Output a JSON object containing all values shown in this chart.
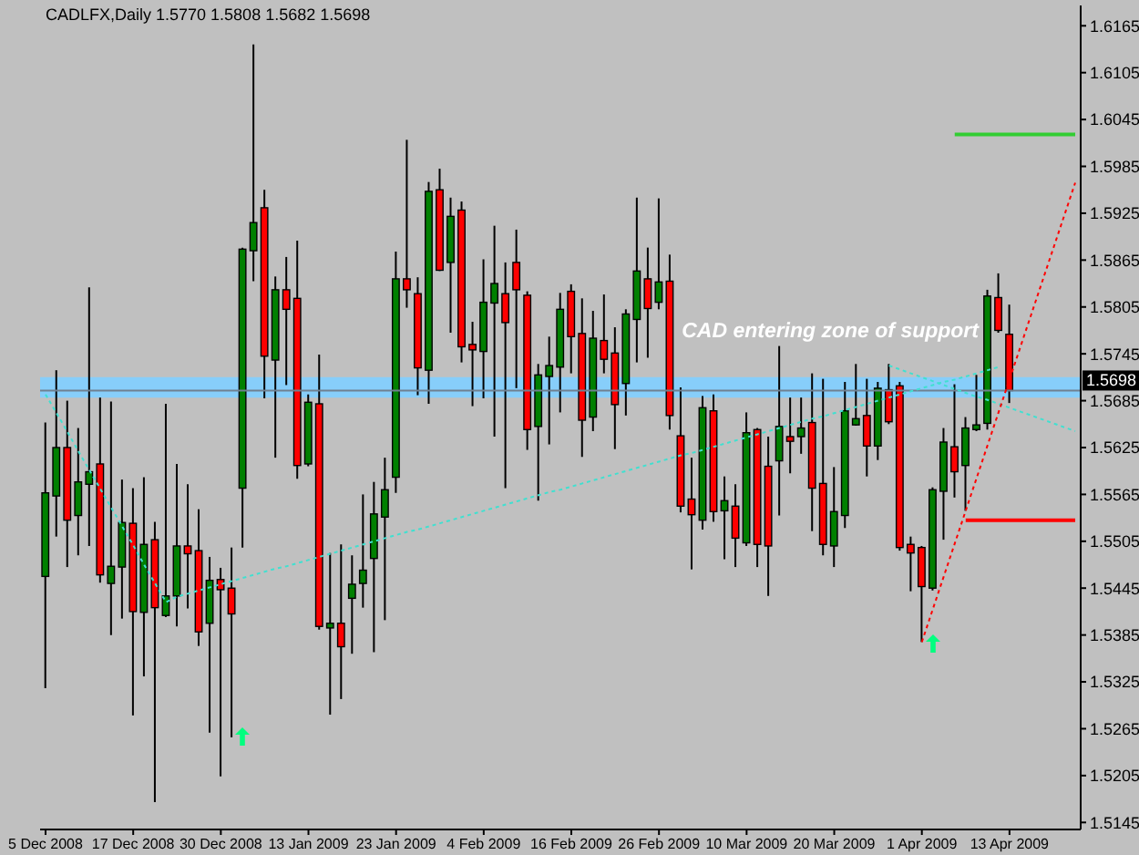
{
  "chart_data": {
    "type": "candlestick",
    "title": "CADLFX,Daily 1.5770 1.5808 1.5682 1.5698",
    "categories": [
      "5 Dec 2008",
      null,
      null,
      null,
      null,
      null,
      null,
      null,
      "17 Dec 2008",
      null,
      null,
      null,
      null,
      null,
      null,
      null,
      "30 Dec 2008",
      null,
      null,
      null,
      null,
      null,
      null,
      null,
      "13 Jan 2009",
      null,
      null,
      null,
      null,
      null,
      null,
      null,
      "23 Jan 2009",
      null,
      null,
      null,
      null,
      null,
      null,
      null,
      "4 Feb 2009",
      null,
      null,
      null,
      null,
      null,
      null,
      null,
      "16 Feb 2009",
      null,
      null,
      null,
      null,
      null,
      null,
      null,
      "26 Feb 2009",
      null,
      null,
      null,
      null,
      null,
      null,
      null,
      "10 Mar 2009",
      null,
      null,
      null,
      null,
      null,
      null,
      null,
      "20 Mar 2009",
      null,
      null,
      null,
      null,
      null,
      null,
      null,
      "1 Apr 2009",
      null,
      null,
      null,
      null,
      null,
      null,
      null,
      "13 Apr 2009",
      null,
      null,
      null,
      null,
      null,
      null
    ],
    "ohlc": [
      [
        1.546,
        1.5657,
        1.5317,
        1.5567
      ],
      [
        1.5563,
        1.5724,
        1.5511,
        1.5625
      ],
      [
        1.5625,
        1.5685,
        1.5472,
        1.5532
      ],
      [
        1.5538,
        1.565,
        1.5487,
        1.5581
      ],
      [
        1.5578,
        1.583,
        1.5499,
        1.5594
      ],
      [
        1.5604,
        1.5689,
        1.5452,
        1.5462
      ],
      [
        1.5451,
        1.5684,
        1.5385,
        1.5473
      ],
      [
        1.5472,
        1.5584,
        1.5406,
        1.5529
      ],
      [
        1.5528,
        1.5573,
        1.5282,
        1.5415
      ],
      [
        1.5414,
        1.5587,
        1.5332,
        1.5501
      ],
      [
        1.5507,
        1.553,
        1.5171,
        1.542
      ],
      [
        1.541,
        1.5681,
        1.5408,
        1.5435
      ],
      [
        1.5435,
        1.5604,
        1.5396,
        1.5499
      ],
      [
        1.5499,
        1.5578,
        1.5419,
        1.5489
      ],
      [
        1.5493,
        1.5546,
        1.5371,
        1.5389
      ],
      [
        1.54,
        1.5485,
        1.526,
        1.5455
      ],
      [
        1.5456,
        1.5471,
        1.5204,
        1.5443
      ],
      [
        1.5445,
        1.5497,
        1.5254,
        1.5412
      ],
      [
        1.5573,
        1.5881,
        1.5497,
        1.5879
      ],
      [
        1.5877,
        1.6141,
        1.5838,
        1.5913
      ],
      [
        1.5932,
        1.5955,
        1.5688,
        1.5742
      ],
      [
        1.5737,
        1.5844,
        1.5612,
        1.5827
      ],
      [
        1.5827,
        1.5869,
        1.5705,
        1.5802
      ],
      [
        1.5816,
        1.589,
        1.5585,
        1.5602
      ],
      [
        1.5604,
        1.5693,
        1.5601,
        1.5683
      ],
      [
        1.5681,
        1.5744,
        1.5392,
        1.5396
      ],
      [
        1.5394,
        1.549,
        1.5283,
        1.54
      ],
      [
        1.54,
        1.5501,
        1.5303,
        1.537
      ],
      [
        1.5432,
        1.5487,
        1.5361,
        1.545
      ],
      [
        1.5451,
        1.5565,
        1.542,
        1.5468
      ],
      [
        1.5483,
        1.5581,
        1.5363,
        1.554
      ],
      [
        1.5536,
        1.5612,
        1.5404,
        1.5571
      ],
      [
        1.5587,
        1.5876,
        1.5567,
        1.5841
      ],
      [
        1.5841,
        1.6019,
        1.5804,
        1.5827
      ],
      [
        1.5822,
        1.5843,
        1.5692,
        1.5727
      ],
      [
        1.5724,
        1.5965,
        1.5681,
        1.5953
      ],
      [
        1.5955,
        1.5982,
        1.5851,
        1.5852
      ],
      [
        1.5862,
        1.5945,
        1.5772,
        1.5921
      ],
      [
        1.5929,
        1.594,
        1.5734,
        1.5754
      ],
      [
        1.5757,
        1.5786,
        1.5678,
        1.575
      ],
      [
        1.5748,
        1.5866,
        1.5688,
        1.5811
      ],
      [
        1.581,
        1.5909,
        1.5639,
        1.5835
      ],
      [
        1.5822,
        1.5862,
        1.5573,
        1.5785
      ],
      [
        1.5862,
        1.5904,
        1.5701,
        1.5827
      ],
      [
        1.582,
        1.5825,
        1.5622,
        1.5648
      ],
      [
        1.5652,
        1.5732,
        1.5557,
        1.5718
      ],
      [
        1.5716,
        1.5767,
        1.5629,
        1.573
      ],
      [
        1.5728,
        1.5823,
        1.567,
        1.5802
      ],
      [
        1.5825,
        1.5834,
        1.572,
        1.5767
      ],
      [
        1.5771,
        1.5816,
        1.5613,
        1.566
      ],
      [
        1.5664,
        1.58,
        1.5646,
        1.5765
      ],
      [
        1.5762,
        1.5821,
        1.572,
        1.5738
      ],
      [
        1.5746,
        1.5779,
        1.5623,
        1.568
      ],
      [
        1.5707,
        1.5802,
        1.5666,
        1.5796
      ],
      [
        1.5789,
        1.5945,
        1.5734,
        1.5851
      ],
      [
        1.5841,
        1.5881,
        1.574,
        1.5803
      ],
      [
        1.5811,
        1.5944,
        1.5802,
        1.5837
      ],
      [
        1.5838,
        1.5872,
        1.5648,
        1.5666
      ],
      [
        1.564,
        1.5702,
        1.5542,
        1.555
      ],
      [
        1.5559,
        1.5612,
        1.5469,
        1.5539
      ],
      [
        1.5532,
        1.5691,
        1.552,
        1.5676
      ],
      [
        1.5672,
        1.5693,
        1.553,
        1.5543
      ],
      [
        1.5544,
        1.5588,
        1.5482,
        1.5557
      ],
      [
        1.555,
        1.5578,
        1.5472,
        1.5509
      ],
      [
        1.5503,
        1.567,
        1.5499,
        1.5644
      ],
      [
        1.5648,
        1.565,
        1.5472,
        1.5501
      ],
      [
        1.5601,
        1.5639,
        1.5435,
        1.5499
      ],
      [
        1.5608,
        1.5755,
        1.5538,
        1.5652
      ],
      [
        1.5639,
        1.5689,
        1.5592,
        1.5633
      ],
      [
        1.5639,
        1.5689,
        1.5617,
        1.565
      ],
      [
        1.5657,
        1.572,
        1.5518,
        1.5573
      ],
      [
        1.5579,
        1.5713,
        1.5487,
        1.5501
      ],
      [
        1.5499,
        1.56,
        1.5472,
        1.5543
      ],
      [
        1.5538,
        1.5709,
        1.5522,
        1.5672
      ],
      [
        1.5654,
        1.5732,
        1.5653,
        1.5662
      ],
      [
        1.5666,
        1.5713,
        1.5588,
        1.5627
      ],
      [
        1.5627,
        1.5709,
        1.5609,
        1.5701
      ],
      [
        1.5699,
        1.5732,
        1.5655,
        1.5658
      ],
      [
        1.5704,
        1.5709,
        1.5493,
        1.5497
      ],
      [
        1.5501,
        1.5511,
        1.5441,
        1.549
      ],
      [
        1.5497,
        1.5499,
        1.5376,
        1.5447
      ],
      [
        1.5445,
        1.5574,
        1.5442,
        1.5571
      ],
      [
        1.5569,
        1.565,
        1.5507,
        1.5632
      ],
      [
        1.5626,
        1.5706,
        1.5561,
        1.5594
      ],
      [
        1.5602,
        1.5664,
        1.5544,
        1.565
      ],
      [
        1.5648,
        1.5718,
        1.5646,
        1.5654
      ],
      [
        1.5656,
        1.5827,
        1.5648,
        1.5819
      ],
      [
        1.5817,
        1.5848,
        1.5772,
        1.5775
      ],
      [
        1.577,
        1.5808,
        1.5682,
        1.5698
      ],
      null,
      null,
      null,
      null,
      null,
      null
    ],
    "colors": [
      "#008000",
      "#008000",
      "#ff0000",
      "#008000",
      "#008000",
      "#ff0000",
      "#008000",
      "#008000",
      "#ff0000",
      "#008000",
      "#ff0000",
      "#008000",
      "#008000",
      "#ff0000",
      "#ff0000",
      "#008000",
      "#ff0000",
      "#ff0000",
      "#008000",
      "#008000",
      "#ff0000",
      "#008000",
      "#ff0000",
      "#ff0000",
      "#008000",
      "#ff0000",
      "#008000",
      "#ff0000",
      "#008000",
      "#008000",
      "#008000",
      "#008000",
      "#008000",
      "#ff0000",
      "#ff0000",
      "#008000",
      "#ff0000",
      "#008000",
      "#ff0000",
      "#ff0000",
      "#008000",
      "#008000",
      "#ff0000",
      "#ff0000",
      "#ff0000",
      "#008000",
      "#008000",
      "#008000",
      "#ff0000",
      "#ff0000",
      "#008000",
      "#ff0000",
      "#ff0000",
      "#008000",
      "#008000",
      "#ff0000",
      "#008000",
      "#ff0000",
      "#ff0000",
      "#ff0000",
      "#008000",
      "#ff0000",
      "#008000",
      "#ff0000",
      "#008000",
      "#ff0000",
      "#ff0000",
      "#008000",
      "#ff0000",
      "#008000",
      "#ff0000",
      "#ff0000",
      "#008000",
      "#008000",
      "#008000",
      "#ff0000",
      "#008000",
      "#ff0000",
      "#ff0000",
      "#ff0000",
      "#ff0000",
      "#008000",
      "#008000",
      "#ff0000",
      "#008000",
      "#008000",
      "#008000",
      "#ff0000",
      "#ff0000",
      null,
      null,
      null,
      null,
      null,
      null
    ],
    "series": [
      {
        "type": "line",
        "color": "#40e0d0",
        "line_style": "dotted",
        "values": [
          1.5693,
          1.5669,
          1.5645,
          1.562,
          1.5596,
          1.5572,
          1.5548,
          1.5524,
          1.55,
          1.5475,
          1.5451,
          1.5427,
          1.5434,
          1.5438,
          1.5442,
          1.5446,
          1.545,
          1.5454,
          1.5458,
          1.5462,
          1.5466,
          1.547,
          1.5473,
          1.5477,
          1.5481,
          1.5485,
          1.5489,
          1.5493,
          1.5497,
          1.5501,
          1.5505,
          1.5509,
          1.5513,
          1.5517,
          1.552,
          1.5524,
          1.5528,
          1.5532,
          1.5536,
          1.554,
          1.5544,
          1.5548,
          1.5552,
          1.5556,
          1.556,
          1.5564,
          1.5568,
          1.5571,
          1.5575,
          1.5579,
          1.5583,
          1.5587,
          1.5591,
          1.5595,
          1.5599,
          1.5603,
          1.5607,
          1.5611,
          1.5615,
          1.5618,
          1.5622,
          1.5626,
          1.563,
          1.5634,
          1.5638,
          1.5642,
          1.5646,
          1.565,
          1.5654,
          1.5658,
          1.5662,
          1.5665,
          1.5669,
          1.5673,
          1.5677,
          1.5681,
          1.5685,
          1.5689,
          1.5693,
          1.5697,
          1.5701,
          1.5705,
          1.5709,
          1.5712,
          1.5716,
          1.572,
          1.5724,
          1.5728,
          null,
          null,
          null,
          null,
          null,
          null,
          null
        ]
      },
      {
        "type": "line",
        "color": "#40e0d0",
        "line_style": "dotted",
        "values": [
          null,
          null,
          null,
          null,
          null,
          null,
          null,
          null,
          null,
          null,
          null,
          null,
          null,
          null,
          null,
          null,
          null,
          null,
          null,
          null,
          null,
          null,
          null,
          null,
          null,
          null,
          null,
          null,
          null,
          null,
          null,
          null,
          null,
          null,
          null,
          null,
          null,
          null,
          null,
          null,
          null,
          null,
          null,
          null,
          null,
          null,
          null,
          null,
          null,
          null,
          null,
          null,
          null,
          null,
          null,
          null,
          null,
          null,
          null,
          null,
          null,
          null,
          null,
          null,
          null,
          null,
          null,
          null,
          null,
          null,
          null,
          null,
          null,
          null,
          null,
          null,
          null,
          1.573,
          1.5725,
          1.572,
          1.5715,
          1.571,
          1.5705,
          1.57,
          1.5695,
          1.569,
          1.5686,
          1.5681,
          1.5676,
          1.5671,
          1.5666,
          1.5661,
          1.5656,
          1.5651,
          1.5646
        ]
      },
      {
        "type": "line",
        "color": "#ff0000",
        "line_style": "dotted",
        "values": [
          null,
          null,
          null,
          null,
          null,
          null,
          null,
          null,
          null,
          null,
          null,
          null,
          null,
          null,
          null,
          null,
          null,
          null,
          null,
          null,
          null,
          null,
          null,
          null,
          null,
          null,
          null,
          null,
          null,
          null,
          null,
          null,
          null,
          null,
          null,
          null,
          null,
          null,
          null,
          null,
          null,
          null,
          null,
          null,
          null,
          null,
          null,
          null,
          null,
          null,
          null,
          null,
          null,
          null,
          null,
          null,
          null,
          null,
          null,
          null,
          null,
          null,
          null,
          null,
          null,
          null,
          null,
          null,
          null,
          null,
          null,
          null,
          null,
          null,
          null,
          null,
          null,
          null,
          null,
          null,
          1.5376,
          1.5418,
          1.546,
          1.5502,
          1.5544,
          1.5586,
          1.5628,
          1.567,
          1.5712,
          1.5754,
          1.5796,
          1.5838,
          1.588,
          1.5922,
          1.5964
        ]
      },
      {
        "type": "line",
        "color": "#32cd32",
        "line_style": "solid",
        "values": [
          null,
          null,
          null,
          null,
          null,
          null,
          null,
          null,
          null,
          null,
          null,
          null,
          null,
          null,
          null,
          null,
          null,
          null,
          null,
          null,
          null,
          null,
          null,
          null,
          null,
          null,
          null,
          null,
          null,
          null,
          null,
          null,
          null,
          null,
          null,
          null,
          null,
          null,
          null,
          null,
          null,
          null,
          null,
          null,
          null,
          null,
          null,
          null,
          null,
          null,
          null,
          null,
          null,
          null,
          null,
          null,
          null,
          null,
          null,
          null,
          null,
          null,
          null,
          null,
          null,
          null,
          null,
          null,
          null,
          null,
          null,
          null,
          null,
          null,
          null,
          null,
          null,
          null,
          null,
          null,
          null,
          null,
          null,
          1.6026,
          1.6026,
          1.6026,
          1.6026,
          1.6026,
          1.6026,
          1.6026,
          1.6026,
          1.6026,
          1.6026,
          1.6026,
          1.6026
        ]
      },
      {
        "type": "line",
        "color": "#ff0000",
        "line_style": "solid",
        "values": [
          null,
          null,
          null,
          null,
          null,
          null,
          null,
          null,
          null,
          null,
          null,
          null,
          null,
          null,
          null,
          null,
          null,
          null,
          null,
          null,
          null,
          null,
          null,
          null,
          null,
          null,
          null,
          null,
          null,
          null,
          null,
          null,
          null,
          null,
          null,
          null,
          null,
          null,
          null,
          null,
          null,
          null,
          null,
          null,
          null,
          null,
          null,
          null,
          null,
          null,
          null,
          null,
          null,
          null,
          null,
          null,
          null,
          null,
          null,
          null,
          null,
          null,
          null,
          null,
          null,
          null,
          null,
          null,
          null,
          null,
          null,
          null,
          null,
          null,
          null,
          null,
          null,
          null,
          null,
          null,
          null,
          null,
          null,
          null,
          1.5532,
          1.5532,
          1.5532,
          1.5532,
          1.5532,
          1.5532,
          1.5532,
          1.5532,
          1.5532,
          1.5532,
          1.5532
        ]
      }
    ],
    "ylim": [
      1.5136,
      1.6191
    ],
    "yticks": [
      1.5145,
      1.5205,
      1.5265,
      1.5325,
      1.5385,
      1.5445,
      1.5505,
      1.5565,
      1.5625,
      1.5685,
      1.5745,
      1.5805,
      1.5865,
      1.5925,
      1.5985,
      1.6045,
      1.6105,
      1.6165
    ],
    "ref_lines": [
      {
        "axis": "y",
        "value": 1.5698,
        "label": "1.5698",
        "color": "#708090"
      }
    ],
    "bands": [
      {
        "axis": "y",
        "from": 1.5689,
        "to": 1.5715,
        "label": "CAD entering zone of support",
        "color": "#87cefa"
      }
    ]
  }
}
